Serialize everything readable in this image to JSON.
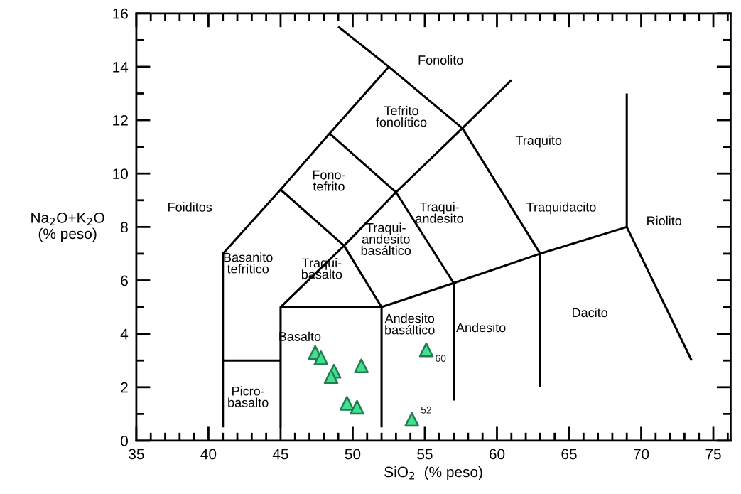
{
  "chart_data": {
    "type": "scatter",
    "xlabel": "SiO$_{2}$  (% peso)",
    "ylabel": "Na$_{2}$O+K$_{2}$O\n(% peso)",
    "xlim": [
      35,
      76.2
    ],
    "ylim": [
      0,
      16
    ],
    "xticks": [
      35,
      {
        "value": 36,
        "label": null
      },
      {
        "value": 37,
        "label": null
      },
      {
        "value": 38,
        "label": null
      },
      {
        "value": 39,
        "label": null
      },
      40,
      {
        "value": 41,
        "label": null
      },
      {
        "value": 42,
        "label": null
      },
      {
        "value": 43,
        "label": null
      },
      {
        "value": 44,
        "label": null
      },
      45,
      {
        "value": 46,
        "label": null
      },
      {
        "value": 47,
        "label": null
      },
      {
        "value": 48,
        "label": null
      },
      {
        "value": 49,
        "label": null
      },
      50,
      {
        "value": 51,
        "label": null
      },
      {
        "value": 52,
        "label": null
      },
      {
        "value": 53,
        "label": null
      },
      {
        "value": 54,
        "label": null
      },
      55,
      {
        "value": 56,
        "label": null
      },
      {
        "value": 57,
        "label": null
      },
      {
        "value": 58,
        "label": null
      },
      {
        "value": 59,
        "label": null
      },
      60,
      {
        "value": 61,
        "label": null
      },
      {
        "value": 62,
        "label": null
      },
      {
        "value": 63,
        "label": null
      },
      {
        "value": 64,
        "label": null
      },
      65,
      {
        "value": 66,
        "label": null
      },
      {
        "value": 67,
        "label": null
      },
      {
        "value": 68,
        "label": null
      },
      {
        "value": 69,
        "label": null
      },
      70,
      {
        "value": 71,
        "label": null
      },
      {
        "value": 72,
        "label": null
      },
      {
        "value": 73,
        "label": null
      },
      {
        "value": 74,
        "label": null
      },
      75,
      {
        "value": 76,
        "label": null
      }
    ],
    "yticks": [
      0,
      {
        "value": 1,
        "label": null
      },
      2,
      {
        "value": 3,
        "label": null
      },
      4,
      {
        "value": 5,
        "label": null
      },
      6,
      {
        "value": 7,
        "label": null
      },
      8,
      {
        "value": 9,
        "label": null
      },
      10,
      {
        "value": 11,
        "label": null
      },
      12,
      {
        "value": 13,
        "label": null
      },
      14,
      {
        "value": 15,
        "label": null
      },
      16
    ],
    "grid": false,
    "legend": false,
    "series": [
      {
        "marker": "triangle",
        "color": "#3fe08f",
        "x": [
          47.4,
          47.8,
          48.7,
          48.5,
          50.6,
          49.6,
          50.3,
          54.1,
          55.1
        ],
        "values": [
          3.3,
          3.1,
          2.6,
          2.4,
          2.8,
          1.4,
          1.25,
          0.8,
          3.4
        ]
      },
      {
        "type": "line",
        "color": "#000000",
        "x": [
          41,
          41,
          45,
          48.4,
          52.5,
          57.6,
          63,
          69,
          73.5
        ],
        "values": [
          0.5,
          7,
          9.4,
          11.5,
          14,
          11.7,
          7,
          8,
          3
        ]
      },
      {
        "type": "line",
        "color": "#000000",
        "x": [
          41,
          45
        ],
        "values": [
          3,
          3
        ]
      },
      {
        "type": "line",
        "color": "#000000",
        "x": [
          45,
          45,
          49.4,
          53,
          57.6,
          61
        ],
        "values": [
          0.5,
          5,
          7.3,
          9.3,
          11.7,
          13.5
        ]
      },
      {
        "type": "line",
        "color": "#000000",
        "x": [
          45,
          52,
          57,
          63
        ],
        "values": [
          5,
          5,
          5.9,
          7
        ]
      },
      {
        "type": "line",
        "color": "#000000",
        "x": [
          52,
          52,
          49.4,
          45
        ],
        "values": [
          0.5,
          5,
          7.3,
          9.4
        ]
      },
      {
        "type": "line",
        "color": "#000000",
        "x": [
          57,
          57,
          53,
          48.4
        ],
        "values": [
          1.5,
          5.9,
          9.3,
          11.5
        ]
      },
      {
        "type": "line",
        "color": "#000000",
        "x": [
          63,
          63
        ],
        "values": [
          2,
          7
        ]
      },
      {
        "type": "line",
        "color": "#000000",
        "x": [
          69,
          69
        ],
        "values": [
          8,
          13
        ]
      },
      {
        "type": "line",
        "color": "#000000",
        "x": [
          49,
          52.5
        ],
        "values": [
          15.5,
          14
        ]
      }
    ],
    "annotations": [
      "Fonolito",
      "Tefrito\nfonolítico",
      "Traquito",
      "Fono-\ntefrito",
      "Foiditos",
      "Traqui-\nandesito",
      "Traquidacito",
      "Riolito",
      "Traqui-\nandesito\nbasáltico",
      "Basanito\ntefrítico",
      "Traqui-\nbasalto",
      "Andesito\nbasáltico",
      "Andesito",
      "Dacito",
      "Basalto",
      "Picro-\nbasalto",
      {
        "text": "60",
        "x": 55.1,
        "y": 3.4
      },
      {
        "text": "52",
        "x": 54.1,
        "y": 0.8
      }
    ]
  }
}
